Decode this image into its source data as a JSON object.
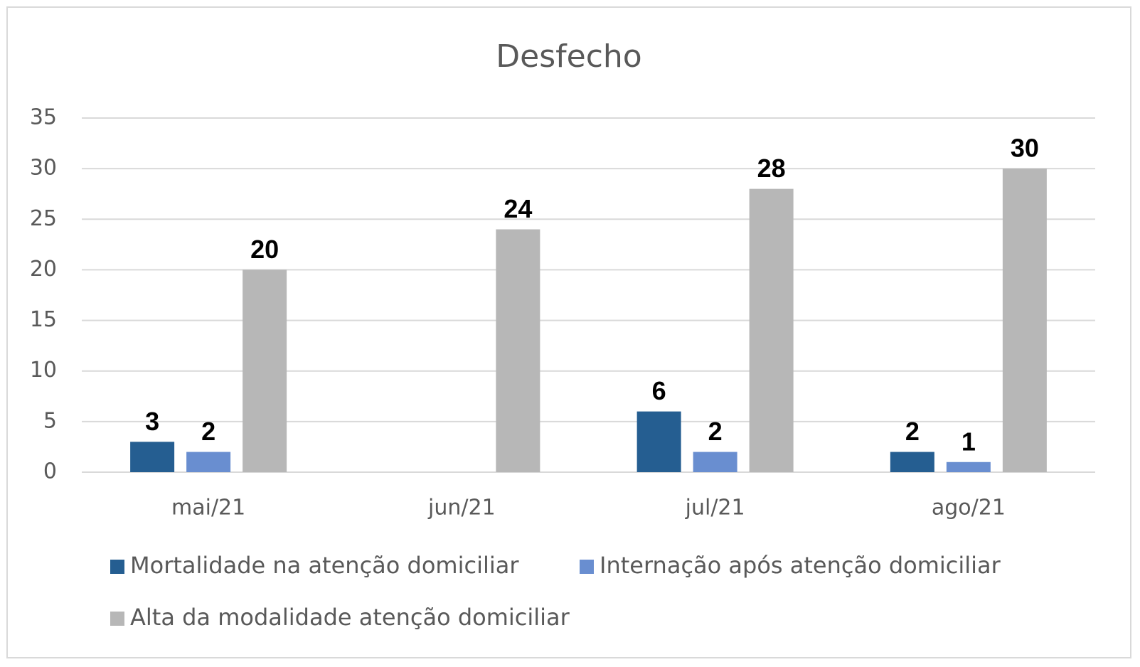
{
  "chart_data": {
    "type": "bar",
    "title": "Desfecho",
    "categories": [
      "mai/21",
      "jun/21",
      "jul/21",
      "ago/21"
    ],
    "series": [
      {
        "name": "Mortalidade na atenção domiciliar",
        "color": "#255e91",
        "values": [
          3,
          null,
          6,
          2
        ]
      },
      {
        "name": "Internação após atenção domiciliar",
        "color": "#698ed0",
        "values": [
          2,
          null,
          2,
          1
        ]
      },
      {
        "name": "Alta da modalidade atenção domiciliar",
        "color": "#b7b7b7",
        "values": [
          20,
          24,
          28,
          30
        ]
      }
    ],
    "ylim": [
      0,
      35
    ],
    "yticks": [
      0,
      5,
      10,
      15,
      20,
      25,
      30,
      35
    ],
    "grid": true,
    "legend": "bottom",
    "data_labels": true
  }
}
